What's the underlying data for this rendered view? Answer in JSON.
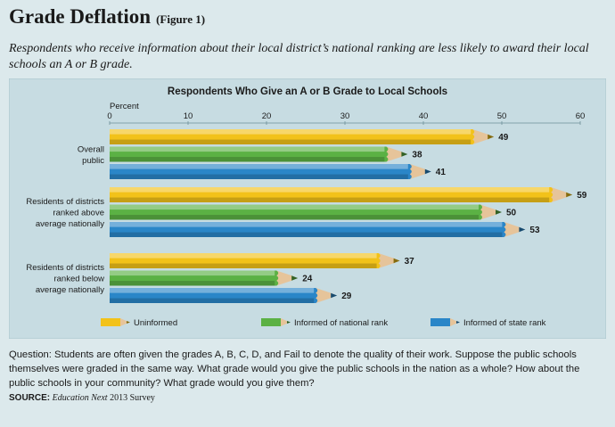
{
  "header": {
    "title": "Grade Deflation",
    "figure_label": "(Figure 1)",
    "subtitle": "Respondents who receive information about their local district’s national ranking are less likely to award their local schools an A or B grade."
  },
  "footer": {
    "question": "Question: Students are often given the grades A, B, C, D, and Fail to denote the quality of their work. Suppose the public schools themselves were graded in the same way. What grade would you give the public schools in the nation as a whole? How about the public schools in your community? What grade would you give them?",
    "source_label": "SOURCE:",
    "source_publication": "Education Next",
    "source_year": "2013 Survey"
  },
  "colors": {
    "background": "#dce9ec",
    "plot_background": "#c7dce2",
    "uninformed": "#f2c21a",
    "informed_national": "#5bb144",
    "informed_state": "#2a86c8",
    "text": "#1a1a1a"
  },
  "chart_data": {
    "type": "bar",
    "orientation": "horizontal",
    "title": "Respondents Who Give an A or B Grade to Local Schools",
    "xlabel": "Percent",
    "xlim": [
      0,
      60
    ],
    "xticks": [
      0,
      10,
      20,
      30,
      40,
      50,
      60
    ],
    "categories": [
      [
        "Overall",
        "public"
      ],
      [
        "Residents of districts",
        "ranked above",
        "average nationally"
      ],
      [
        "Residents of districts",
        "ranked below",
        "average nationally"
      ]
    ],
    "series": [
      {
        "name": "Uninformed",
        "color": "#f2c21a",
        "values": [
          49,
          59,
          37
        ]
      },
      {
        "name": "Informed of national rank",
        "color": "#5bb144",
        "values": [
          38,
          50,
          24
        ]
      },
      {
        "name": "Informed of state rank",
        "color": "#2a86c8",
        "values": [
          41,
          53,
          29
        ]
      }
    ],
    "legend_position": "bottom",
    "grid": false
  }
}
